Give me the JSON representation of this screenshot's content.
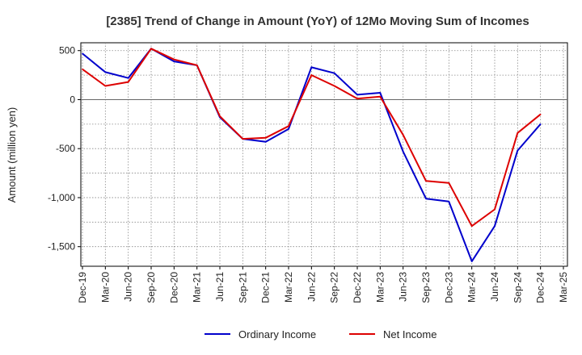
{
  "chart_data": {
    "type": "line",
    "title": "[2385]  Trend of Change in Amount (YoY) of 12Mo Moving Sum of Incomes",
    "ylabel": "Amount (million yen)",
    "xlabel": "",
    "ylim": [
      -1700,
      580
    ],
    "yticks": [
      500,
      0,
      -500,
      -1000,
      -1500
    ],
    "ytick_labels": [
      "500",
      "0",
      "-500",
      "-1,000",
      "-1,500"
    ],
    "categories": [
      "Dec-19",
      "Mar-20",
      "Jun-20",
      "Sep-20",
      "Dec-20",
      "Mar-21",
      "Jun-21",
      "Sep-21",
      "Dec-21",
      "Mar-22",
      "Jun-22",
      "Sep-22",
      "Dec-22",
      "Mar-23",
      "Jun-23",
      "Sep-23",
      "Dec-23",
      "Mar-24",
      "Jun-24",
      "Sep-24",
      "Dec-24",
      "Mar-25"
    ],
    "grid": true,
    "legend_position": "bottom-center",
    "series": [
      {
        "name": "Ordinary Income",
        "color": "#0000cc",
        "values": [
          470,
          280,
          220,
          520,
          390,
          350,
          -180,
          -400,
          -430,
          -300,
          330,
          270,
          50,
          70,
          -530,
          -1010,
          -1040,
          -1650,
          -1290,
          -520,
          -250,
          null
        ]
      },
      {
        "name": "Net Income",
        "color": "#dd0000",
        "values": [
          310,
          140,
          180,
          520,
          410,
          350,
          -170,
          -400,
          -390,
          -270,
          250,
          140,
          10,
          30,
          -360,
          -830,
          -850,
          -1290,
          -1120,
          -340,
          -150,
          null
        ]
      }
    ]
  }
}
